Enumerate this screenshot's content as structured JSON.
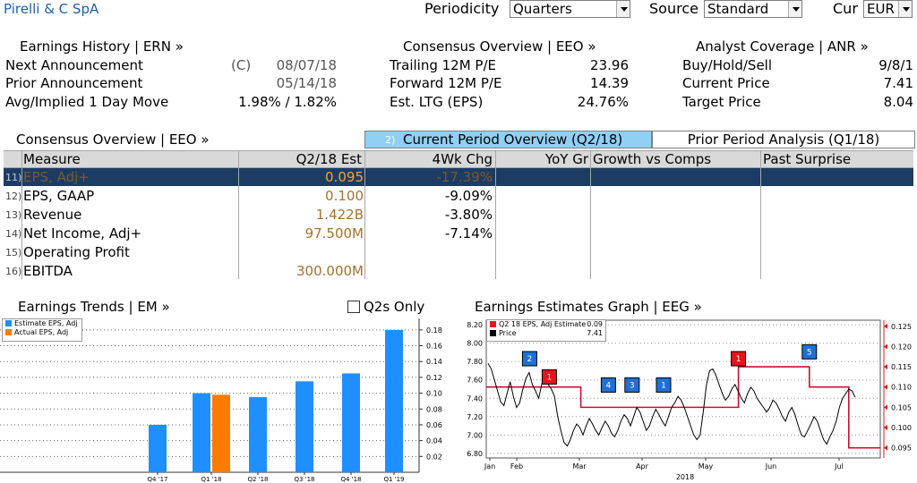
{
  "company": "Pirelli & C SpA",
  "controls": {
    "periodicity_label": "Periodicity",
    "periodicity_value": "Quarters",
    "source_label": "Source",
    "source_value": "Standard",
    "cur_label": "Cur",
    "cur_value": "EUR"
  },
  "earnings_history": {
    "header": "Earnings History | ERN »",
    "rows": [
      {
        "label": "Next Announcement",
        "prefix": "(C)",
        "value": "08/07/18"
      },
      {
        "label": "Prior Announcement",
        "prefix": "",
        "value": "05/14/18"
      },
      {
        "label": "Avg/Implied 1 Day Move",
        "prefix": "",
        "value": "1.98% / 1.82%"
      }
    ]
  },
  "consensus_overview_top": {
    "header": "Consensus Overview | EEO »",
    "rows": [
      {
        "label": "Trailing 12M P/E",
        "value": "23.96"
      },
      {
        "label": "Forward 12M P/E",
        "value": "14.39"
      },
      {
        "label": "Est. LTG (EPS)",
        "value": "24.76%"
      }
    ]
  },
  "analyst_coverage": {
    "header": "Analyst Coverage | ANR »",
    "rows": [
      {
        "label": "Buy/Hold/Sell",
        "value": "9/8/1"
      },
      {
        "label": "Current Price",
        "value": "7.41"
      },
      {
        "label": "Target Price",
        "value": "8.04"
      }
    ]
  },
  "consensus_table": {
    "header": "Consensus Overview | EEO »",
    "tab_current_num": "2)",
    "tab_current": "Current Period Overview (Q2/18)",
    "tab_prior": "Prior Period Analysis (Q1/18)",
    "columns": [
      "Measure",
      "Q2/18 Est",
      "4Wk Chg",
      "YoY Gr",
      "Growth vs Comps",
      "Past Surprise"
    ],
    "rows": [
      {
        "num": "11)",
        "measure": "EPS, Adj+",
        "est": "0.095",
        "chg": "-17.39%"
      },
      {
        "num": "12)",
        "measure": "EPS, GAAP",
        "est": "0.100",
        "chg": "-9.09%"
      },
      {
        "num": "13)",
        "measure": "Revenue",
        "est": "1.422B",
        "chg": "-3.80%"
      },
      {
        "num": "14)",
        "measure": "Net Income, Adj+",
        "est": "97.500M",
        "chg": "-7.14%"
      },
      {
        "num": "15)",
        "measure": "Operating Profit",
        "est": "",
        "chg": ""
      },
      {
        "num": "16)",
        "measure": "EBITDA",
        "est": "300.000M",
        "chg": ""
      }
    ]
  },
  "earnings_trends": {
    "header": "Earnings Trends | EM »",
    "checkbox_label": "Q2s Only"
  },
  "earnings_estimates": {
    "header": "Earnings Estimates Graph | EEG »"
  },
  "chart_data": [
    {
      "type": "bar",
      "categories": [
        "Q4 '17",
        "Q1 '18",
        "Q2 '18",
        "Q3 '18",
        "Q4 '18",
        "Q1 '19"
      ],
      "series": [
        {
          "name": "Estimate EPS, Adj",
          "color": "#1f8fff",
          "values": [
            0.06,
            0.1,
            0.095,
            0.115,
            0.125,
            0.18
          ]
        },
        {
          "name": "Actual EPS, Adj",
          "color": "#ff7a00",
          "values": [
            null,
            0.098,
            null,
            null,
            null,
            null
          ]
        }
      ],
      "ylim": [
        0,
        0.19
      ],
      "yticks": [
        "0.02",
        "0.04",
        "0.06",
        "0.08",
        "0.10",
        "0.12",
        "0.14",
        "0.16",
        "0.18"
      ],
      "legend": "top-left",
      "grid": true
    },
    {
      "type": "line",
      "legend": {
        "entries": [
          {
            "name": "Q2 18 EPS, Adj Estimate",
            "value": "0.09",
            "color": "#e8141b"
          },
          {
            "name": "Price",
            "value": "7.41",
            "color": "#000000"
          }
        ],
        "placement": "top-left"
      },
      "x_ticks": [
        "Jan",
        "Feb",
        "Mar",
        "Apr",
        "May",
        "Jun",
        "Jul"
      ],
      "x_year": "2018",
      "y_left": {
        "ticks": [
          "6.80",
          "7.00",
          "7.20",
          "7.40",
          "7.60",
          "7.80",
          "8.00",
          "8.20"
        ],
        "range": [
          6.75,
          8.25
        ]
      },
      "y_right": {
        "ticks": [
          "0.095",
          "0.100",
          "0.105",
          "0.110",
          "0.115",
          "0.120",
          "0.125"
        ],
        "range": [
          0.0925,
          0.1265
        ]
      },
      "price_series": [
        7.78,
        7.72,
        7.6,
        7.48,
        7.36,
        7.32,
        7.45,
        7.58,
        7.42,
        7.3,
        7.35,
        7.5,
        7.62,
        7.68,
        7.55,
        7.48,
        7.4,
        7.56,
        7.62,
        7.55,
        7.5,
        7.42,
        7.2,
        7.05,
        6.92,
        6.88,
        6.95,
        7.05,
        7.12,
        7.08,
        7.0,
        7.1,
        7.18,
        7.12,
        7.05,
        7.0,
        7.08,
        7.15,
        7.1,
        7.02,
        6.98,
        7.05,
        7.15,
        7.22,
        7.18,
        7.1,
        7.2,
        7.3,
        7.25,
        7.15,
        7.05,
        7.1,
        7.2,
        7.28,
        7.22,
        7.15,
        7.1,
        7.2,
        7.3,
        7.35,
        7.42,
        7.38,
        7.3,
        7.2,
        7.1,
        7.0,
        6.95,
        7.0,
        7.25,
        7.55,
        7.7,
        7.72,
        7.65,
        7.55,
        7.45,
        7.38,
        7.42,
        7.5,
        7.55,
        7.48,
        7.4,
        7.35,
        7.45,
        7.52,
        7.48,
        7.4,
        7.35,
        7.3,
        7.25,
        7.3,
        7.38,
        7.35,
        7.28,
        7.2,
        7.15,
        7.25,
        7.3,
        7.22,
        7.1,
        7.0,
        6.98,
        7.05,
        7.12,
        7.2,
        7.15,
        7.05,
        6.95,
        6.9,
        6.98,
        7.05,
        7.15,
        7.3,
        7.4,
        7.45,
        7.5,
        7.48,
        7.41
      ],
      "estimate_series": [
        {
          "from": 0.0,
          "to": 0.24,
          "value": 0.11
        },
        {
          "from": 0.24,
          "to": 0.44,
          "value": 0.105
        },
        {
          "from": 0.44,
          "to": 0.64,
          "value": 0.105
        },
        {
          "from": 0.64,
          "to": 0.82,
          "value": 0.115
        },
        {
          "from": 0.82,
          "to": 0.92,
          "value": 0.11
        },
        {
          "from": 0.92,
          "to": 1.0,
          "value": 0.095
        }
      ],
      "markers": [
        {
          "label": "2",
          "color": "#1f6fd6",
          "x": 0.11,
          "y": 0.117
        },
        {
          "label": "1",
          "color": "#e8141b",
          "x": 0.16,
          "y": 0.1125
        },
        {
          "label": "4",
          "color": "#1f6fd6",
          "x": 0.31,
          "y": 0.1105
        },
        {
          "label": "3",
          "color": "#1f6fd6",
          "x": 0.37,
          "y": 0.1105
        },
        {
          "label": "1",
          "color": "#1f6fd6",
          "x": 0.45,
          "y": 0.1105
        },
        {
          "label": "1",
          "color": "#e8141b",
          "x": 0.64,
          "y": 0.117
        },
        {
          "label": "5",
          "color": "#1f6fd6",
          "x": 0.82,
          "y": 0.1187
        }
      ]
    }
  ]
}
